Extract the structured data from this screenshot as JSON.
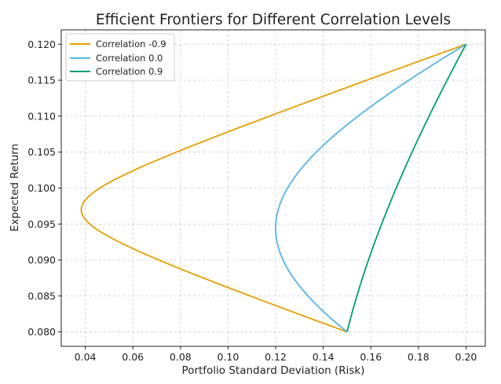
{
  "chart_data": {
    "type": "line",
    "title": "Efficient Frontiers for Different Correlation Levels",
    "xlabel": "Portfolio Standard Deviation (Risk)",
    "ylabel": "Expected Return",
    "xlim": [
      0.0299,
      0.2081
    ],
    "ylim": [
      0.078,
      0.122
    ],
    "xticks": [
      0.04,
      0.06,
      0.08,
      0.1,
      0.12,
      0.14,
      0.16,
      0.18,
      0.2
    ],
    "xtick_labels": [
      "0.04",
      "0.06",
      "0.08",
      "0.10",
      "0.12",
      "0.14",
      "0.16",
      "0.18",
      "0.20"
    ],
    "yticks": [
      0.08,
      0.085,
      0.09,
      0.095,
      0.1,
      0.105,
      0.11,
      0.115,
      0.12
    ],
    "ytick_labels": [
      "0.080",
      "0.085",
      "0.090",
      "0.095",
      "0.100",
      "0.105",
      "0.110",
      "0.115",
      "0.120"
    ],
    "grid": true,
    "legend_position": "top-left",
    "assets": [
      {
        "std": 0.15,
        "return": 0.08
      },
      {
        "std": 0.2,
        "return": 0.12
      }
    ],
    "series": [
      {
        "name": "Correlation -0.9",
        "correlation": -0.9,
        "color": "#E69F00",
        "min_risk_point": {
          "x": 0.038,
          "y": 0.097
        }
      },
      {
        "name": "Correlation 0.0",
        "correlation": 0.0,
        "color": "#56B4E9",
        "min_risk_point": {
          "x": 0.12,
          "y": 0.094
        }
      },
      {
        "name": "Correlation 0.9",
        "correlation": 0.9,
        "color": "#009E73",
        "min_risk_point": {
          "x": 0.15,
          "y": 0.08
        }
      }
    ]
  }
}
